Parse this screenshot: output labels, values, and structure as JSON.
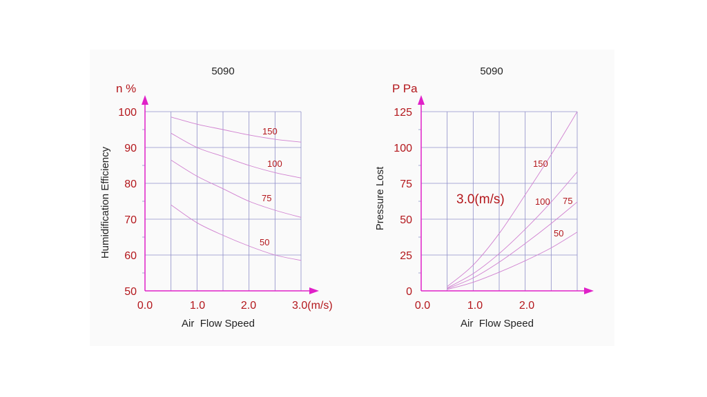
{
  "colors": {
    "axis": "#e020c8",
    "grid": "#8e8ec8",
    "text_red": "#b3161b",
    "curve": "#d080d0"
  },
  "chart_data": [
    {
      "type": "line",
      "title": "5090",
      "xlabel": "Air  Flow Speed",
      "ylabel": "Humidification Efficiency",
      "yunit": "n %",
      "xlim": [
        0,
        3.0
      ],
      "ylim": [
        50,
        100
      ],
      "xticks": [
        "0.0",
        "1.0",
        "2.0",
        "3.0(m/s)"
      ],
      "yticks": [
        "50",
        "60",
        "70",
        "80",
        "90",
        "100"
      ],
      "grid": true,
      "series": [
        {
          "name": "150",
          "x": [
            0.5,
            1.0,
            1.5,
            2.0,
            2.5,
            3.0
          ],
          "y": [
            98.5,
            96.5,
            95.0,
            93.5,
            92.3,
            91.5
          ]
        },
        {
          "name": "100",
          "x": [
            0.5,
            1.0,
            1.5,
            2.0,
            2.5,
            3.0
          ],
          "y": [
            94.0,
            90.0,
            87.5,
            85.0,
            83.0,
            81.5
          ]
        },
        {
          "name": "75",
          "x": [
            0.5,
            1.0,
            1.5,
            2.0,
            2.5,
            3.0
          ],
          "y": [
            86.5,
            82.0,
            78.5,
            75.0,
            72.5,
            70.5
          ]
        },
        {
          "name": "50",
          "x": [
            0.5,
            1.0,
            1.5,
            2.0,
            2.5,
            3.0
          ],
          "y": [
            74.0,
            69.0,
            65.5,
            62.5,
            60.0,
            58.5
          ]
        }
      ]
    },
    {
      "type": "line",
      "title": "5090",
      "xlabel": "Air  Flow Speed",
      "ylabel": "Pressure Lost",
      "yunit": "P Pa",
      "xlim": [
        0,
        3.0
      ],
      "ylim": [
        0,
        125
      ],
      "xticks": [
        "0.0",
        "1.0",
        "2.0"
      ],
      "yticks": [
        "0",
        "25",
        "50",
        "75",
        "100",
        "125"
      ],
      "grid": true,
      "annotation": "3.0(m/s)",
      "series": [
        {
          "name": "150",
          "x": [
            0.5,
            1.0,
            1.5,
            2.0,
            2.5,
            3.0
          ],
          "y": [
            3,
            18,
            40,
            67,
            95,
            125
          ]
        },
        {
          "name": "100",
          "x": [
            0.5,
            1.0,
            1.5,
            2.0,
            2.5,
            3.0
          ],
          "y": [
            2,
            12,
            26,
            43,
            62,
            83
          ]
        },
        {
          "name": "75",
          "x": [
            0.5,
            1.0,
            1.5,
            2.0,
            2.5,
            3.0
          ],
          "y": [
            1.5,
            9,
            20,
            33,
            47,
            62
          ]
        },
        {
          "name": "50",
          "x": [
            0.5,
            1.0,
            1.5,
            2.0,
            2.5,
            3.0
          ],
          "y": [
            1,
            6,
            13,
            21,
            30,
            41
          ]
        }
      ]
    }
  ]
}
